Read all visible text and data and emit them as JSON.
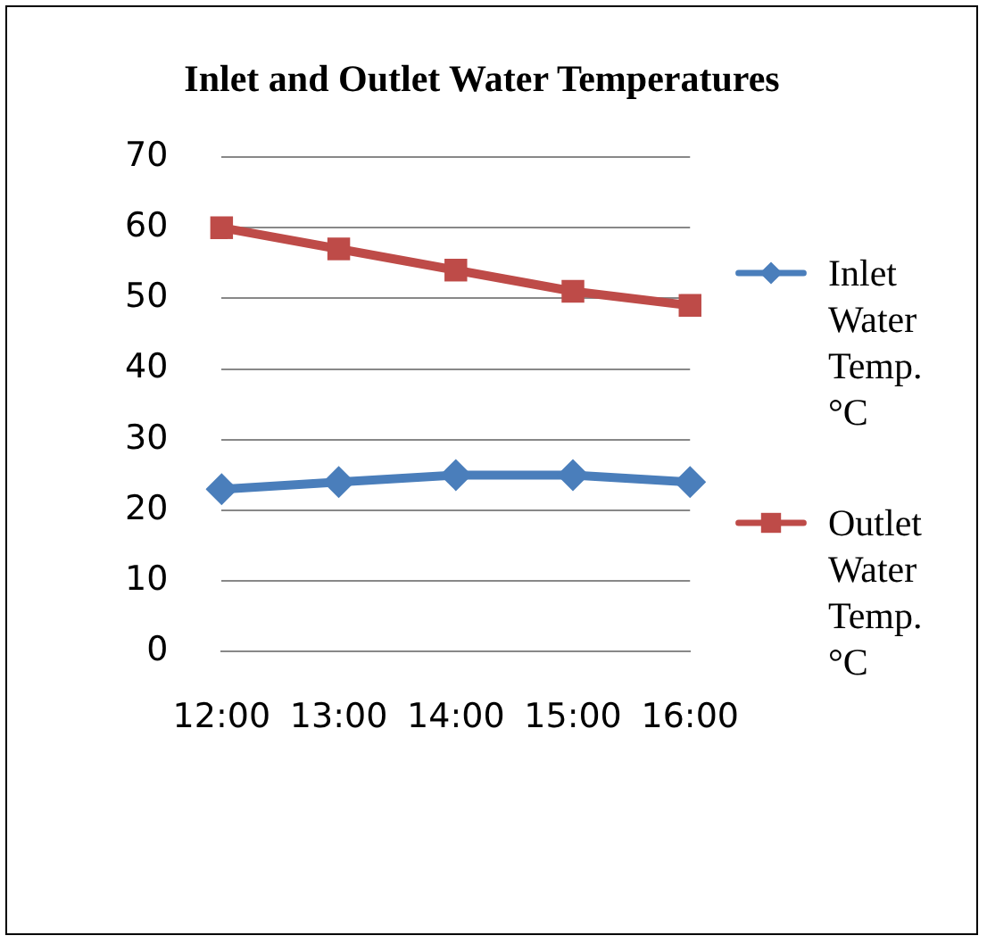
{
  "chart_data": {
    "type": "line",
    "title": "Inlet and Outlet Water Temperatures",
    "categories": [
      "12:00",
      "13:00",
      "14:00",
      "15:00",
      "16:00"
    ],
    "series": [
      {
        "name": "Inlet Water Temp. °C",
        "color": "#4a7ebb",
        "values": [
          23,
          24,
          25,
          25,
          24
        ],
        "marker": "diamond"
      },
      {
        "name": "Outlet Water Temp. °C",
        "color": "#be4b48",
        "values": [
          60,
          57,
          54,
          51,
          49
        ],
        "marker": "square"
      }
    ],
    "ylim": [
      0,
      70
    ],
    "yticks": [
      0,
      10,
      20,
      30,
      40,
      50,
      60,
      70
    ],
    "grid": "y",
    "legend": "right",
    "line_style": "solid"
  }
}
